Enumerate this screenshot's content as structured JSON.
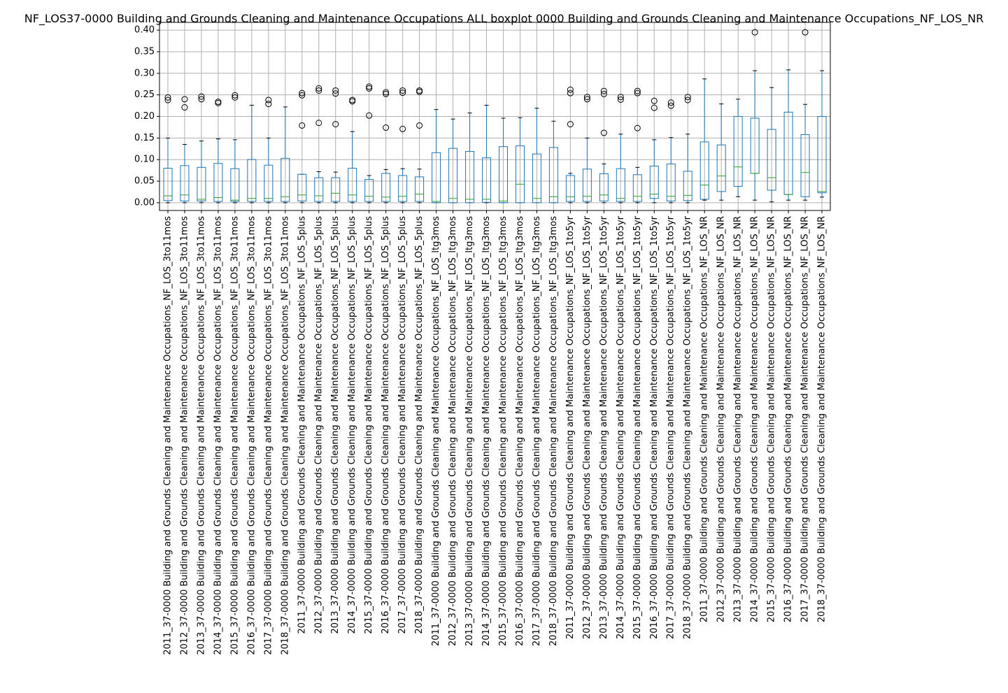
{
  "chart_data": {
    "type": "boxplot",
    "title": "NF_LOS37-0000 Building and Grounds Cleaning and Maintenance Occupations ALL boxplot 0000 Building and Grounds Cleaning and Maintenance Occupations_NF_LOS_NR",
    "xlabel": "",
    "ylabel": "",
    "ylim": [
      -0.018,
      0.418
    ],
    "yticks": [
      "0.00",
      "0.05",
      "0.10",
      "0.15",
      "0.20",
      "0.25",
      "0.30",
      "0.35",
      "0.40"
    ],
    "ytick_values": [
      0.0,
      0.05,
      0.1,
      0.15,
      0.2,
      0.25,
      0.3,
      0.35,
      0.4
    ],
    "grid": true,
    "colors": {
      "box": "#1f77b4",
      "median": "#2ca02c",
      "flier": "#000000",
      "grid": "#b0b0b0"
    },
    "categories": [
      "2011_37-0000 Building and Grounds Cleaning and Maintenance Occupations_NF_LOS_3to11mos",
      "2012_37-0000 Building and Grounds Cleaning and Maintenance Occupations_NF_LOS_3to11mos",
      "2013_37-0000 Building and Grounds Cleaning and Maintenance Occupations_NF_LOS_3to11mos",
      "2014_37-0000 Building and Grounds Cleaning and Maintenance Occupations_NF_LOS_3to11mos",
      "2015_37-0000 Building and Grounds Cleaning and Maintenance Occupations_NF_LOS_3to11mos",
      "2016_37-0000 Building and Grounds Cleaning and Maintenance Occupations_NF_LOS_3to11mos",
      "2017_37-0000 Building and Grounds Cleaning and Maintenance Occupations_NF_LOS_3to11mos",
      "2018_37-0000 Building and Grounds Cleaning and Maintenance Occupations_NF_LOS_3to11mos",
      "2011_37-0000 Building and Grounds Cleaning and Maintenance Occupations_NF_LOS_5plus",
      "2012_37-0000 Building and Grounds Cleaning and Maintenance Occupations_NF_LOS_5plus",
      "2013_37-0000 Building and Grounds Cleaning and Maintenance Occupations_NF_LOS_5plus",
      "2014_37-0000 Building and Grounds Cleaning and Maintenance Occupations_NF_LOS_5plus",
      "2015_37-0000 Building and Grounds Cleaning and Maintenance Occupations_NF_LOS_5plus",
      "2016_37-0000 Building and Grounds Cleaning and Maintenance Occupations_NF_LOS_5plus",
      "2017_37-0000 Building and Grounds Cleaning and Maintenance Occupations_NF_LOS_5plus",
      "2018_37-0000 Building and Grounds Cleaning and Maintenance Occupations_NF_LOS_5plus",
      "2011_37-0000 Building and Grounds Cleaning and Maintenance Occupations_NF_LOS_ltg3mos",
      "2012_37-0000 Building and Grounds Cleaning and Maintenance Occupations_NF_LOS_ltg3mos",
      "2013_37-0000 Building and Grounds Cleaning and Maintenance Occupations_NF_LOS_ltg3mos",
      "2014_37-0000 Building and Grounds Cleaning and Maintenance Occupations_NF_LOS_ltg3mos",
      "2015_37-0000 Building and Grounds Cleaning and Maintenance Occupations_NF_LOS_ltg3mos",
      "2016_37-0000 Building and Grounds Cleaning and Maintenance Occupations_NF_LOS_ltg3mos",
      "2017_37-0000 Building and Grounds Cleaning and Maintenance Occupations_NF_LOS_ltg3mos",
      "2018_37-0000 Building and Grounds Cleaning and Maintenance Occupations_NF_LOS_ltg3mos",
      "2011_37-0000 Building and Grounds Cleaning and Maintenance Occupations_NF_LOS_1to5yr",
      "2012_37-0000 Building and Grounds Cleaning and Maintenance Occupations_NF_LOS_1to5yr",
      "2013_37-0000 Building and Grounds Cleaning and Maintenance Occupations_NF_LOS_1to5yr",
      "2014_37-0000 Building and Grounds Cleaning and Maintenance Occupations_NF_LOS_1to5yr",
      "2015_37-0000 Building and Grounds Cleaning and Maintenance Occupations_NF_LOS_1to5yr",
      "2016_37-0000 Building and Grounds Cleaning and Maintenance Occupations_NF_LOS_1to5yr",
      "2017_37-0000 Building and Grounds Cleaning and Maintenance Occupations_NF_LOS_1to5yr",
      "2018_37-0000 Building and Grounds Cleaning and Maintenance Occupations_NF_LOS_1to5yr",
      "2011_37-0000 Building and Grounds Cleaning and Maintenance Occupations_NF_LOS_NR",
      "2012_37-0000 Building and Grounds Cleaning and Maintenance Occupations_NF_LOS_NR",
      "2013_37-0000 Building and Grounds Cleaning and Maintenance Occupations_NF_LOS_NR",
      "2014_37-0000 Building and Grounds Cleaning and Maintenance Occupations_NF_LOS_NR",
      "2015_37-0000 Building and Grounds Cleaning and Maintenance Occupations_NF_LOS_NR",
      "2016_37-0000 Building and Grounds Cleaning and Maintenance Occupations_NF_LOS_NR",
      "2017_37-0000 Building and Grounds Cleaning and Maintenance Occupations_NF_LOS_NR",
      "2018_37-0000 Building and Grounds Cleaning and Maintenance Occupations_NF_LOS_NR"
    ],
    "boxes": [
      {
        "whislo": 0.0,
        "q1": 0.005,
        "med": 0.016,
        "q3": 0.08,
        "whishi": 0.15,
        "fliers": [
          0.238,
          0.244
        ]
      },
      {
        "whislo": 0.0,
        "q1": 0.004,
        "med": 0.018,
        "q3": 0.086,
        "whishi": 0.135,
        "fliers": [
          0.221,
          0.24
        ]
      },
      {
        "whislo": 0.0,
        "q1": 0.004,
        "med": 0.008,
        "q3": 0.082,
        "whishi": 0.143,
        "fliers": [
          0.24,
          0.246
        ]
      },
      {
        "whislo": 0.0,
        "q1": 0.003,
        "med": 0.012,
        "q3": 0.091,
        "whishi": 0.148,
        "fliers": [
          0.231,
          0.234
        ]
      },
      {
        "whislo": 0.0,
        "q1": 0.003,
        "med": 0.006,
        "q3": 0.079,
        "whishi": 0.146,
        "fliers": [
          0.244,
          0.249
        ]
      },
      {
        "whislo": 0.0,
        "q1": 0.003,
        "med": 0.01,
        "q3": 0.1,
        "whishi": 0.226,
        "fliers": []
      },
      {
        "whislo": 0.0,
        "q1": 0.003,
        "med": 0.01,
        "q3": 0.087,
        "whishi": 0.15,
        "fliers": [
          0.229,
          0.238
        ]
      },
      {
        "whislo": 0.0,
        "q1": 0.003,
        "med": 0.014,
        "q3": 0.103,
        "whishi": 0.222,
        "fliers": []
      },
      {
        "whislo": 0.0,
        "q1": 0.004,
        "med": 0.018,
        "q3": 0.066,
        "whishi": 0.066,
        "fliers": [
          0.179,
          0.249,
          0.254
        ]
      },
      {
        "whislo": 0.0,
        "q1": 0.003,
        "med": 0.016,
        "q3": 0.058,
        "whishi": 0.072,
        "fliers": [
          0.185,
          0.26,
          0.265
        ]
      },
      {
        "whislo": 0.0,
        "q1": 0.003,
        "med": 0.022,
        "q3": 0.058,
        "whishi": 0.071,
        "fliers": [
          0.182,
          0.253,
          0.26
        ]
      },
      {
        "whislo": 0.0,
        "q1": 0.003,
        "med": 0.018,
        "q3": 0.08,
        "whishi": 0.165,
        "fliers": [
          0.235,
          0.238
        ]
      },
      {
        "whislo": 0.0,
        "q1": 0.003,
        "med": 0.015,
        "q3": 0.054,
        "whishi": 0.063,
        "fliers": [
          0.202,
          0.265,
          0.269
        ]
      },
      {
        "whislo": 0.0,
        "q1": 0.003,
        "med": 0.013,
        "q3": 0.068,
        "whishi": 0.077,
        "fliers": [
          0.174,
          0.252,
          0.256
        ]
      },
      {
        "whislo": 0.0,
        "q1": 0.003,
        "med": 0.015,
        "q3": 0.063,
        "whishi": 0.079,
        "fliers": [
          0.171,
          0.255,
          0.26
        ]
      },
      {
        "whislo": 0.0,
        "q1": 0.003,
        "med": 0.02,
        "q3": 0.06,
        "whishi": 0.078,
        "fliers": [
          0.179,
          0.257,
          0.26
        ]
      },
      {
        "whislo": 0.0,
        "q1": 0.0,
        "med": 0.003,
        "q3": 0.116,
        "whishi": 0.216,
        "fliers": []
      },
      {
        "whislo": 0.0,
        "q1": 0.0,
        "med": 0.01,
        "q3": 0.126,
        "whishi": 0.194,
        "fliers": []
      },
      {
        "whislo": 0.0,
        "q1": 0.0,
        "med": 0.008,
        "q3": 0.119,
        "whishi": 0.208,
        "fliers": []
      },
      {
        "whislo": 0.0,
        "q1": 0.001,
        "med": 0.008,
        "q3": 0.104,
        "whishi": 0.226,
        "fliers": []
      },
      {
        "whislo": 0.0,
        "q1": 0.0,
        "med": 0.004,
        "q3": 0.13,
        "whishi": 0.196,
        "fliers": []
      },
      {
        "whislo": 0.0,
        "q1": 0.0,
        "med": 0.043,
        "q3": 0.132,
        "whishi": 0.197,
        "fliers": []
      },
      {
        "whislo": 0.0,
        "q1": 0.0,
        "med": 0.01,
        "q3": 0.113,
        "whishi": 0.219,
        "fliers": []
      },
      {
        "whislo": 0.0,
        "q1": 0.0,
        "med": 0.014,
        "q3": 0.128,
        "whishi": 0.189,
        "fliers": []
      },
      {
        "whislo": 0.0,
        "q1": 0.003,
        "med": 0.014,
        "q3": 0.063,
        "whishi": 0.068,
        "fliers": [
          0.182,
          0.254,
          0.262
        ]
      },
      {
        "whislo": 0.0,
        "q1": 0.003,
        "med": 0.015,
        "q3": 0.078,
        "whishi": 0.15,
        "fliers": [
          0.24,
          0.245
        ]
      },
      {
        "whislo": 0.0,
        "q1": 0.004,
        "med": 0.018,
        "q3": 0.067,
        "whishi": 0.09,
        "fliers": [
          0.162,
          0.252,
          0.259
        ]
      },
      {
        "whislo": 0.0,
        "q1": 0.003,
        "med": 0.01,
        "q3": 0.079,
        "whishi": 0.159,
        "fliers": [
          0.239,
          0.245
        ]
      },
      {
        "whislo": 0.0,
        "q1": 0.003,
        "med": 0.015,
        "q3": 0.065,
        "whishi": 0.082,
        "fliers": [
          0.173,
          0.254,
          0.259
        ]
      },
      {
        "whislo": 0.0,
        "q1": 0.01,
        "med": 0.02,
        "q3": 0.085,
        "whishi": 0.146,
        "fliers": [
          0.22,
          0.236
        ]
      },
      {
        "whislo": 0.0,
        "q1": 0.004,
        "med": 0.015,
        "q3": 0.09,
        "whishi": 0.151,
        "fliers": [
          0.225,
          0.232
        ]
      },
      {
        "whislo": 0.0,
        "q1": 0.005,
        "med": 0.017,
        "q3": 0.073,
        "whishi": 0.159,
        "fliers": [
          0.238,
          0.245
        ]
      },
      {
        "whislo": 0.006,
        "q1": 0.008,
        "med": 0.041,
        "q3": 0.141,
        "whishi": 0.287,
        "fliers": []
      },
      {
        "whislo": 0.006,
        "q1": 0.026,
        "med": 0.062,
        "q3": 0.134,
        "whishi": 0.229,
        "fliers": []
      },
      {
        "whislo": 0.014,
        "q1": 0.038,
        "med": 0.083,
        "q3": 0.2,
        "whishi": 0.24,
        "fliers": []
      },
      {
        "whislo": 0.006,
        "q1": 0.068,
        "med": 0.068,
        "q3": 0.196,
        "whishi": 0.306,
        "fliers": [
          0.395
        ]
      },
      {
        "whislo": 0.002,
        "q1": 0.029,
        "med": 0.058,
        "q3": 0.17,
        "whishi": 0.267,
        "fliers": []
      },
      {
        "whislo": 0.006,
        "q1": 0.019,
        "med": 0.019,
        "q3": 0.21,
        "whishi": 0.308,
        "fliers": []
      },
      {
        "whislo": 0.006,
        "q1": 0.014,
        "med": 0.07,
        "q3": 0.158,
        "whishi": 0.228,
        "fliers": [
          0.395
        ]
      },
      {
        "whislo": 0.013,
        "q1": 0.023,
        "med": 0.026,
        "q3": 0.2,
        "whishi": 0.306,
        "fliers": []
      }
    ]
  }
}
